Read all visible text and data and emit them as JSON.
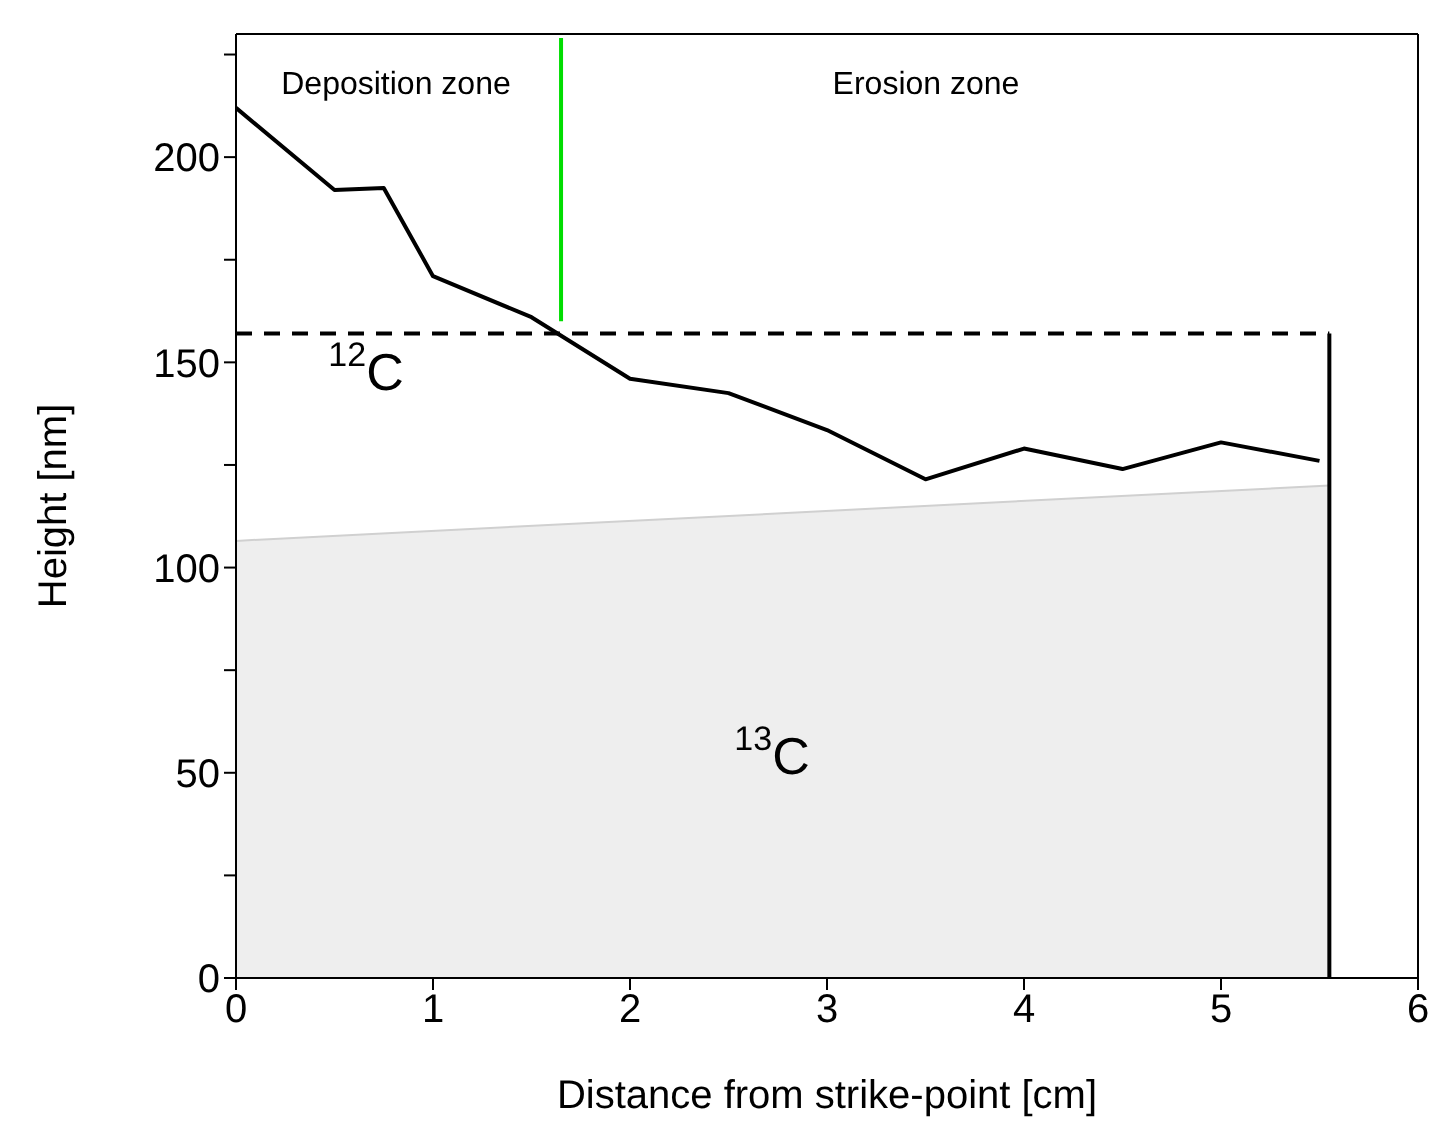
{
  "chart_data": {
    "type": "line",
    "xlabel": "Distance from strike-point [cm]",
    "ylabel": "Height [nm]",
    "xlim": [
      0,
      6
    ],
    "xticks": [
      0,
      1,
      2,
      3,
      4,
      5,
      6
    ],
    "ylim": [
      0,
      230
    ],
    "yticks": [
      0,
      {
        "value": 25,
        "label": null
      },
      50,
      {
        "value": 75,
        "label": null
      },
      100,
      {
        "value": 125,
        "label": null
      },
      150,
      {
        "value": 175,
        "label": null
      },
      200,
      {
        "value": 225,
        "label": null
      }
    ],
    "grid": false,
    "marker": "none",
    "series": [
      {
        "type": "area",
        "color": "#eeeeee",
        "x": [
          0,
          5.55
        ],
        "values": [
          106.5,
          120
        ]
      },
      {
        "color": "#000000",
        "x": [
          0,
          0.5,
          0.75,
          1,
          1.5,
          2,
          2.5,
          3,
          3.5,
          4,
          4.5,
          5,
          5.5
        ],
        "values": [
          212,
          192,
          192.5,
          171,
          161,
          146,
          142.5,
          133.5,
          121.5,
          129,
          124,
          130.5,
          126
        ]
      },
      {
        "type": "line",
        "color": "#000000",
        "line_style": "dashed",
        "x": [
          0,
          5.55
        ],
        "values": [
          157,
          157
        ]
      },
      {
        "type": "line",
        "color": "#000000",
        "x": [
          5.55,
          5.55
        ],
        "values": [
          0,
          157
        ]
      },
      {
        "type": "line",
        "color": "#00dd00",
        "x": [
          1.65,
          1.65
        ],
        "values": [
          160,
          229
        ]
      }
    ],
    "annotations": [
      "Deposition zone",
      "Erosion zone",
      "$^{12}$C",
      "$^{13}$C"
    ]
  }
}
